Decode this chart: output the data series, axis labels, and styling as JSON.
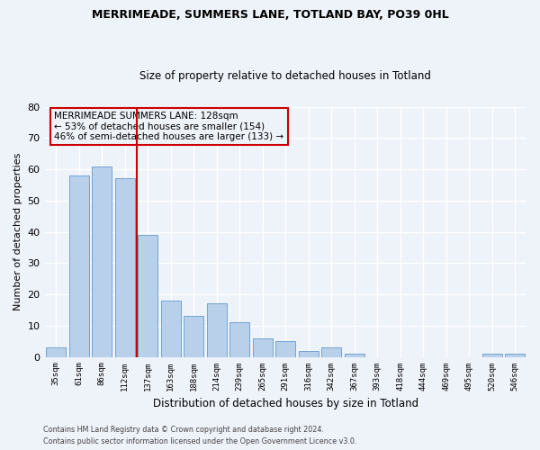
{
  "title": "MERRIMEADE, SUMMERS LANE, TOTLAND BAY, PO39 0HL",
  "subtitle": "Size of property relative to detached houses in Totland",
  "xlabel": "Distribution of detached houses by size in Totland",
  "ylabel": "Number of detached properties",
  "categories": [
    "35sqm",
    "61sqm",
    "86sqm",
    "112sqm",
    "137sqm",
    "163sqm",
    "188sqm",
    "214sqm",
    "239sqm",
    "265sqm",
    "291sqm",
    "316sqm",
    "342sqm",
    "367sqm",
    "393sqm",
    "418sqm",
    "444sqm",
    "469sqm",
    "495sqm",
    "520sqm",
    "546sqm"
  ],
  "values": [
    3,
    58,
    61,
    57,
    39,
    18,
    13,
    17,
    11,
    6,
    5,
    2,
    3,
    1,
    0,
    0,
    0,
    0,
    0,
    1,
    1
  ],
  "bar_color": "#b8d0ea",
  "bar_edge_color": "#6699cc",
  "highlight_line_label": "MERRIMEADE SUMMERS LANE: 128sqm",
  "annotation_line1": "← 53% of detached houses are smaller (154)",
  "annotation_line2": "46% of semi-detached houses are larger (133) →",
  "ylim": [
    0,
    80
  ],
  "yticks": [
    0,
    10,
    20,
    30,
    40,
    50,
    60,
    70,
    80
  ],
  "vline_color": "#cc0000",
  "box_color": "#cc0000",
  "background_color": "#eef2f9",
  "grid_color": "#ffffff",
  "footer1": "Contains HM Land Registry data © Crown copyright and database right 2024.",
  "footer2": "Contains public sector information licensed under the Open Government Licence v3.0."
}
